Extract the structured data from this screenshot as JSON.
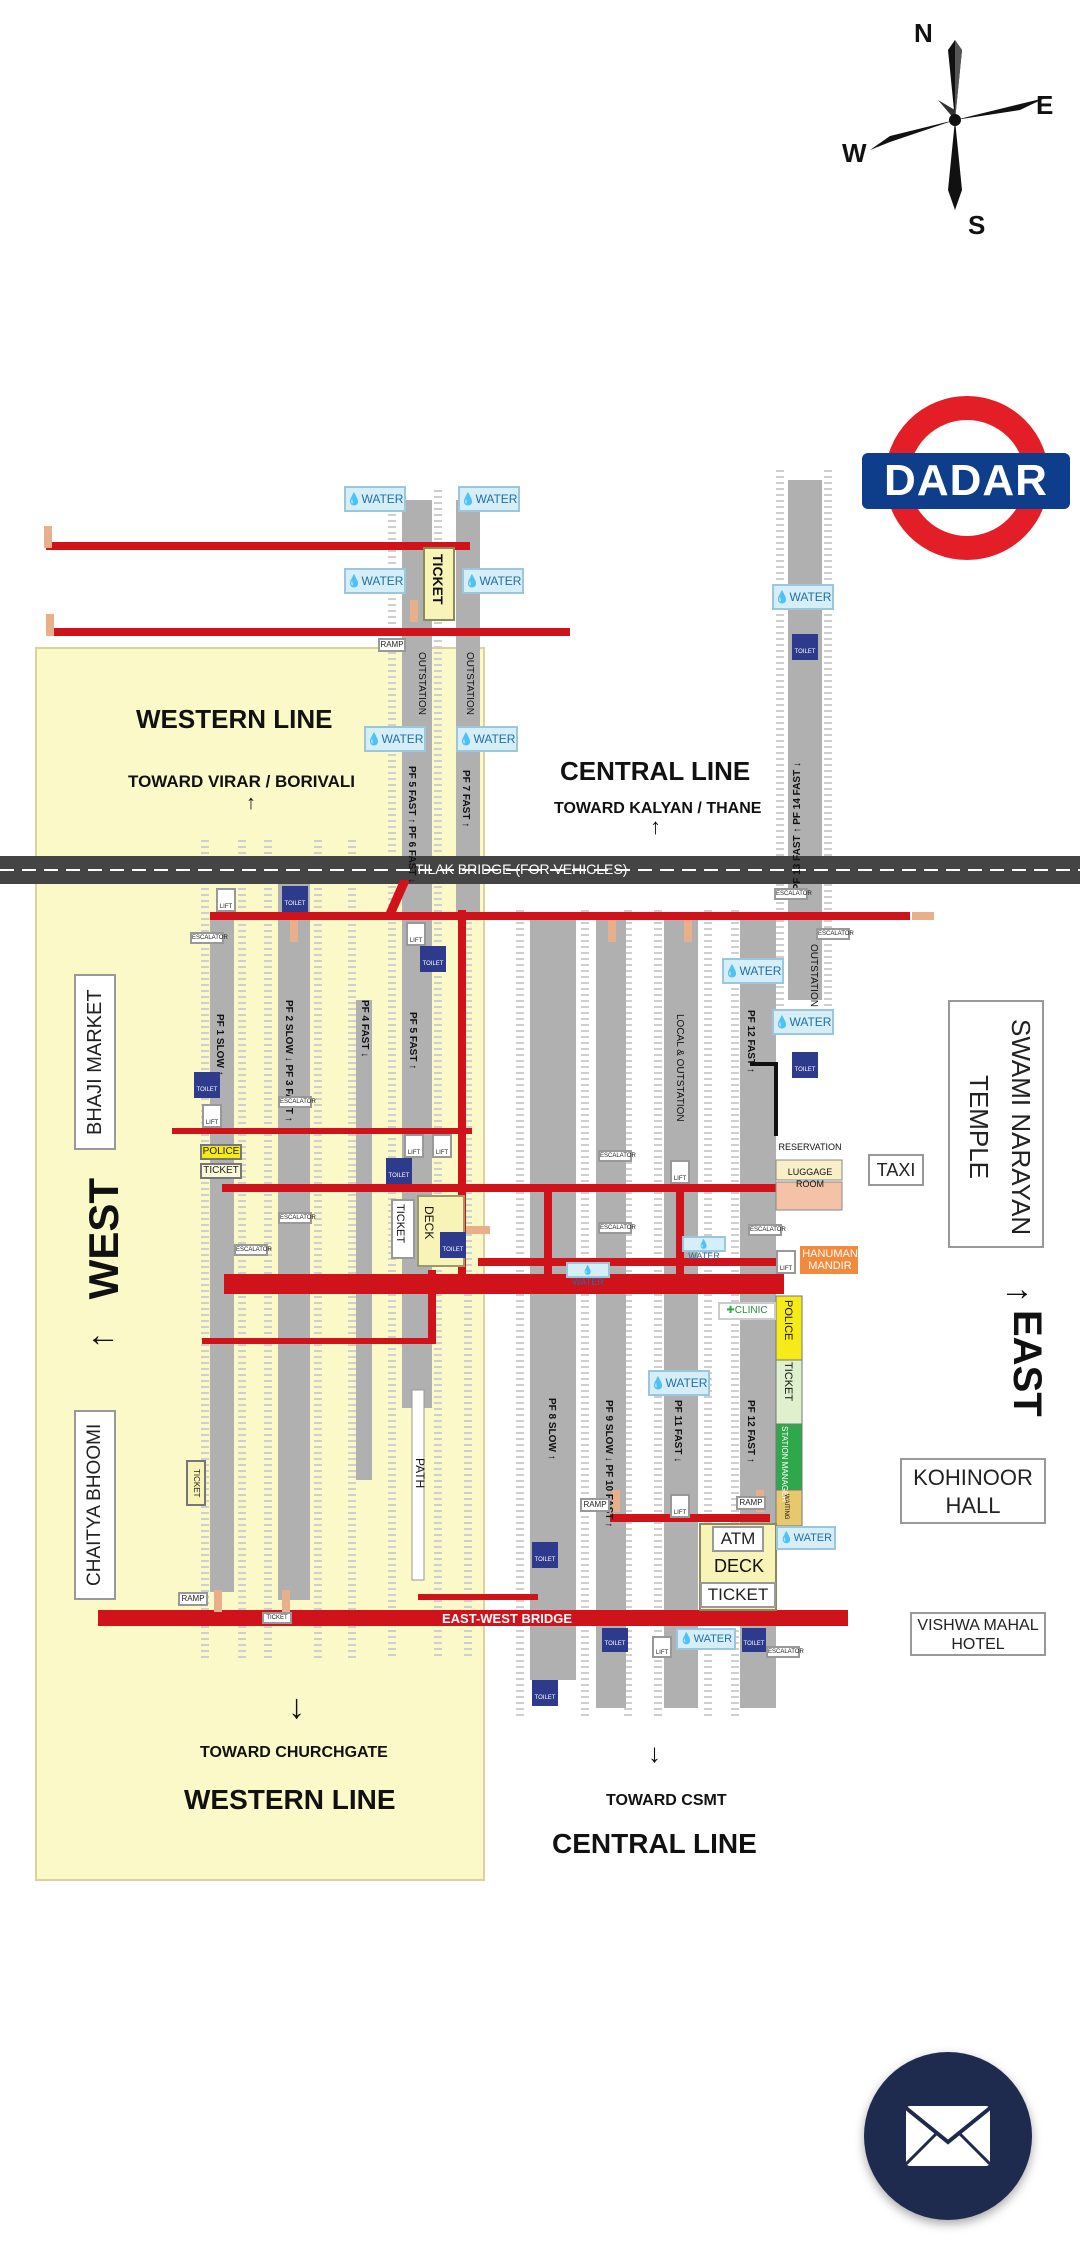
{
  "station_logo": {
    "name": "DADAR"
  },
  "compass": {
    "n": "N",
    "e": "E",
    "s": "S",
    "w": "W"
  },
  "directions": {
    "west": "WEST",
    "east": "EAST",
    "western_line_top": "WESTERN LINE",
    "toward_virar": "TOWARD VIRAR / BORIVALI",
    "central_line_top": "CENTRAL LINE",
    "toward_kalyan": "TOWARD KALYAN / THANE",
    "toward_churchgate": "TOWARD CHURCHGATE",
    "western_line_bottom": "WESTERN LINE",
    "toward_csmt": "TOWARD CSMT",
    "central_line_bottom": "CENTRAL LINE"
  },
  "bridges": {
    "tilak": "TILAK BRIDGE (FOR VEHICLES)",
    "east_west": "EAST-WEST BRIDGE"
  },
  "landmarks": {
    "bhaji_market": "BHAJI MARKET",
    "chaitya_bhoomi": "CHAITYA BHOOMI",
    "swami_narayan": "SWAMI NARAYAN TEMPLE",
    "taxi": "TAXI",
    "kohinoor": "KOHINOOR HALL",
    "vishwa_mahal": "VISHWA MAHAL HOTEL",
    "hanuman_mandir": "HANUMAN MANDIR"
  },
  "facilities": {
    "water": "WATER",
    "ticket": "TICKET",
    "toilet": "TOILET",
    "lift": "LIFT",
    "escalator": "ESCALATOR",
    "ramp": "RAMP",
    "police": "POLICE",
    "reservation": "RESERVATION",
    "luggage_room": "LUGGAGE ROOM",
    "clinic": "CLINIC",
    "station_manager": "STATION MANAGER",
    "waiting": "WAITING",
    "atm": "ATM",
    "deck": "DECK",
    "path": "PATH",
    "outstation": "OUTSTATION"
  },
  "platforms": {
    "pf1": "PF 1 SLOW ↑",
    "pf2_3": "PF 2 SLOW ↓  PF 3 FAST ↑",
    "pf4": "PF 4 FAST ↓",
    "pf5_low": "PF 5 FAST ↑",
    "pf5_6_top": "PF 5 FAST ↑  PF 6 FAST ↓",
    "pf7": "PF 7 FAST ↑",
    "pf8": "PF 8 SLOW ↑",
    "pf9_10": "PF 9 SLOW ↓  PF 10 FAST ↑",
    "pf11": "PF 11 FAST ↓",
    "pf12_low": "PF 12 FAST ↑",
    "pf12_top": "PF 12 FAST ↑",
    "local_outstation": "LOCAL & OUTSTATION",
    "pf13_14": "PF 13 FAST ↑  PF 14 FAST ↓"
  },
  "colors": {
    "bridge_red": "#d0121b",
    "west_zone": "#fbf9c8",
    "platform_gray": "#b0b0b0",
    "water_blue": "#d6eef8",
    "toilet_navy": "#2e3a8c",
    "logo_red": "#e41e26",
    "logo_blue": "#0e3d8b",
    "mail_button": "#1f2a4f"
  }
}
